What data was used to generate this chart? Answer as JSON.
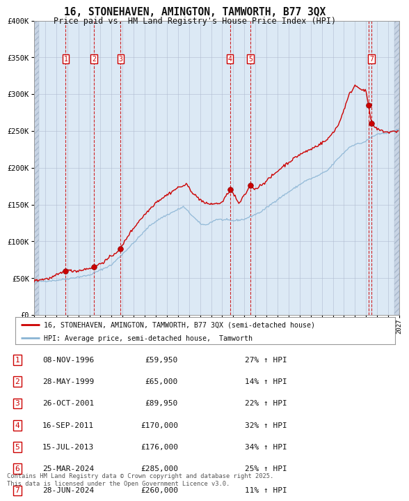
{
  "title": "16, STONEHAVEN, AMINGTON, TAMWORTH, B77 3QX",
  "subtitle": "Price paid vs. HM Land Registry's House Price Index (HPI)",
  "outer_bg_color": "#ffffff",
  "plot_bg_color": "#dce9f5",
  "red_line_color": "#cc0000",
  "blue_line_color": "#8ab4d4",
  "grid_color": "#b0bcd0",
  "ymin": 0,
  "ymax": 400000,
  "yticks": [
    0,
    50000,
    100000,
    150000,
    200000,
    250000,
    300000,
    350000,
    400000
  ],
  "ylabels": [
    "£0",
    "£50K",
    "£100K",
    "£150K",
    "£200K",
    "£250K",
    "£300K",
    "£350K",
    "£400K"
  ],
  "xmin": 1994,
  "xmax": 2027,
  "legend_line1": "16, STONEHAVEN, AMINGTON, TAMWORTH, B77 3QX (semi-detached house)",
  "legend_line2": "HPI: Average price, semi-detached house,  Tamworth",
  "sale_dates_decimal": [
    1996.86,
    1999.41,
    2001.81,
    2011.71,
    2013.54,
    2024.23,
    2024.49
  ],
  "sale_nums": [
    1,
    2,
    3,
    4,
    5,
    6,
    7
  ],
  "sale_prices": [
    59950,
    65000,
    89950,
    170000,
    176000,
    285000,
    260000
  ],
  "show_in_chart": [
    1,
    2,
    3,
    4,
    5,
    7
  ],
  "table_rows": [
    {
      "num": 1,
      "date_str": "08-NOV-1996",
      "price_str": "£59,950",
      "rel": "27% ↑ HPI"
    },
    {
      "num": 2,
      "date_str": "28-MAY-1999",
      "price_str": "£65,000",
      "rel": "14% ↑ HPI"
    },
    {
      "num": 3,
      "date_str": "26-OCT-2001",
      "price_str": "£89,950",
      "rel": "22% ↑ HPI"
    },
    {
      "num": 4,
      "date_str": "16-SEP-2011",
      "price_str": "£170,000",
      "rel": "32% ↑ HPI"
    },
    {
      "num": 5,
      "date_str": "15-JUL-2013",
      "price_str": "£176,000",
      "rel": "34% ↑ HPI"
    },
    {
      "num": 6,
      "date_str": "25-MAR-2024",
      "price_str": "£285,000",
      "rel": "25% ↑ HPI"
    },
    {
      "num": 7,
      "date_str": "28-JUN-2024",
      "price_str": "£260,000",
      "rel": "11% ↑ HPI"
    }
  ],
  "footer": "Contains HM Land Registry data © Crown copyright and database right 2025.\nThis data is licensed under the Open Government Licence v3.0."
}
